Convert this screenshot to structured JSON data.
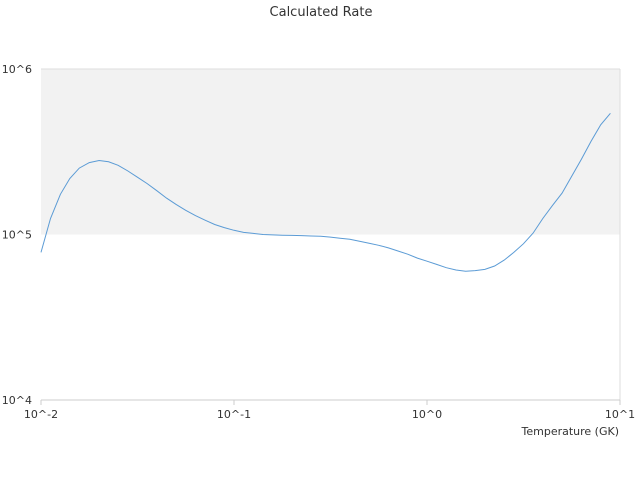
{
  "chart_data": {
    "type": "line",
    "title": "Calculated Rate",
    "xlabel": "Temperature (GK)",
    "ylabel": "",
    "x_scale": "log",
    "y_scale": "log",
    "xlim": [
      0.01,
      10
    ],
    "ylim": [
      10000,
      1000000
    ],
    "x_tick_labels": [
      "10^-2",
      "10^-1",
      "10^0",
      "10^1"
    ],
    "y_tick_labels": [
      "10^4",
      "10^5",
      "10^6"
    ],
    "band": {
      "from": 100000,
      "to": 1000000,
      "color": "#f2f2f2"
    },
    "grid": false,
    "legend": "none",
    "series": [
      {
        "color": "#5b9bd5",
        "x": [
          0.01,
          0.0112,
          0.0126,
          0.0141,
          0.0158,
          0.0178,
          0.02,
          0.0224,
          0.0251,
          0.0282,
          0.0316,
          0.0355,
          0.0398,
          0.0447,
          0.0501,
          0.0562,
          0.0631,
          0.0708,
          0.0794,
          0.0891,
          0.1,
          0.1122,
          0.1259,
          0.1413,
          0.1585,
          0.1778,
          0.1995,
          0.2239,
          0.2512,
          0.2818,
          0.3162,
          0.3548,
          0.3981,
          0.4467,
          0.5012,
          0.5623,
          0.631,
          0.7079,
          0.7943,
          0.8913,
          1.0,
          1.122,
          1.259,
          1.413,
          1.585,
          1.778,
          1.995,
          2.239,
          2.512,
          2.818,
          3.162,
          3.548,
          3.981,
          4.467,
          5.012,
          5.623,
          6.31,
          7.079,
          7.943,
          8.913
        ],
        "values": [
          78000,
          125000,
          175000,
          218000,
          252000,
          272000,
          280000,
          275000,
          262000,
          242000,
          222000,
          203000,
          184000,
          166000,
          152000,
          140000,
          130000,
          122000,
          115000,
          110000,
          106000,
          103000,
          101500,
          100000,
          99500,
          99000,
          98800,
          98500,
          98000,
          97500,
          96500,
          95000,
          93500,
          91000,
          88500,
          86000,
          83000,
          79500,
          76000,
          72000,
          69000,
          66000,
          63000,
          61000,
          60000,
          60500,
          61500,
          64500,
          70000,
          78000,
          88000,
          102000,
          125000,
          150000,
          178000,
          225000,
          285000,
          365000,
          460000,
          540000
        ]
      }
    ]
  }
}
